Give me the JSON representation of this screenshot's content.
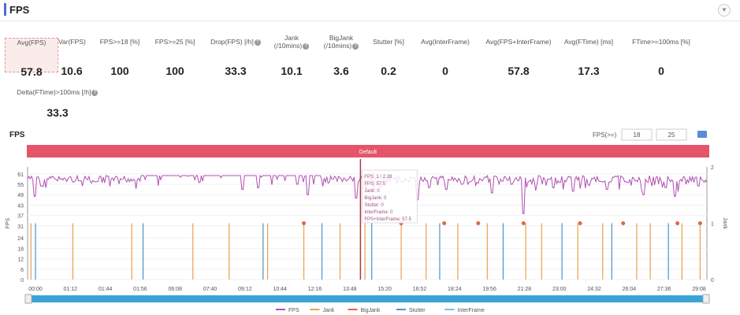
{
  "header": {
    "title": "FPS",
    "collapse_icon": "chevron-down-icon"
  },
  "metrics": [
    {
      "label": "Avg(FPS)",
      "value": "57.8",
      "selected": true
    },
    {
      "label": "Var(FPS)",
      "value": "10.6"
    },
    {
      "label": "FPS>=18 [%]",
      "value": "100"
    },
    {
      "label": "FPS>=25 [%]",
      "value": "100"
    },
    {
      "label": "Drop(FPS) [/h]",
      "value": "33.3",
      "help": true
    },
    {
      "label": "Jank\n(/10mins)",
      "value": "10.1",
      "help": true
    },
    {
      "label": "BigJank\n(/10mins)",
      "value": "3.6",
      "help": true
    },
    {
      "label": "Stutter [%]",
      "value": "0.2"
    },
    {
      "label": "Avg(InterFrame)",
      "value": "0"
    },
    {
      "label": "Avg(FPS+InterFrame)",
      "value": "57.8"
    },
    {
      "label": "Avg(FTime) [ms]",
      "value": "17.3"
    },
    {
      "label": "FTime>=100ms [%]",
      "value": "0"
    },
    {
      "label": "Delta(FTime)>100ms [/h]",
      "value": "33.3",
      "help": true
    }
  ],
  "chart_header": {
    "title": "FPS",
    "threshold_label": "FPS(>=)",
    "threshold_1": "18",
    "threshold_2": "25",
    "settings_icon": "chart-settings-icon",
    "band_label": "Default"
  },
  "chart_data": {
    "type": "line",
    "ylabel": "FPS",
    "y2label": "Jank",
    "ylim": [
      0,
      65
    ],
    "y2lim": [
      0,
      2
    ],
    "yticks": [
      0,
      6,
      12,
      18,
      24,
      31,
      37,
      43,
      49,
      55,
      61
    ],
    "y2ticks": [
      0,
      1,
      2
    ],
    "xlabels": [
      "00:00",
      "01:12",
      "01:44",
      "01:56",
      "06:08",
      "07:40",
      "09:12",
      "10:44",
      "12:16",
      "13:48",
      "15:20",
      "16:52",
      "18:24",
      "19:56",
      "21:28",
      "23:00",
      "24:32",
      "26:04",
      "27:36",
      "29:08"
    ],
    "x_minutes": [
      0,
      30
    ],
    "fps_baseline": 60,
    "fps_dips": [
      [
        0.3,
        48
      ],
      [
        0.6,
        54
      ],
      [
        2.3,
        57
      ],
      [
        7.6,
        56
      ],
      [
        9.5,
        52
      ],
      [
        10.2,
        53
      ],
      [
        11.9,
        55
      ],
      [
        12.4,
        49
      ],
      [
        13.3,
        56
      ],
      [
        14.5,
        47
      ],
      [
        15.6,
        53
      ],
      [
        17.2,
        46
      ],
      [
        18.5,
        52
      ],
      [
        19.2,
        55
      ],
      [
        20.5,
        50
      ],
      [
        21.4,
        55
      ],
      [
        21.9,
        38
      ],
      [
        23.2,
        53
      ],
      [
        24.1,
        51
      ],
      [
        24.8,
        55
      ],
      [
        25.6,
        52
      ],
      [
        26.5,
        56
      ],
      [
        27.2,
        49
      ],
      [
        28.2,
        53
      ],
      [
        28.6,
        48
      ],
      [
        29.6,
        54
      ]
    ],
    "jank_minutes": [
      0.15,
      0.35,
      2.0,
      4.6,
      5.1,
      7.3,
      8.9,
      10.4,
      10.6,
      12.2,
      13.0,
      13.8,
      14.9,
      15.2,
      16.5,
      17.6,
      18.2,
      19.0,
      20.3,
      21.0,
      22.0,
      22.7,
      23.6,
      24.3,
      25.4,
      25.8,
      26.9,
      27.5,
      28.3,
      28.9,
      29.7
    ],
    "bigjank_minutes": [
      12.2,
      16.5,
      18.4,
      19.9,
      21.9,
      24.4,
      26.3,
      28.7,
      29.7
    ],
    "cursor_minute": 14.7,
    "tooltip": [
      "FPS: 1 / 2.28",
      "FPS: 57.5",
      "Jank: 0",
      "BigJank: 0",
      "Stutter: 0",
      "InterFrame: 0",
      "FPS+InterFrame: 57.5"
    ],
    "legend": [
      {
        "name": "FPS",
        "color": "#b04fb0"
      },
      {
        "name": "Jank",
        "color": "#e7a24a"
      },
      {
        "name": "BigJank",
        "color": "#e0664a"
      },
      {
        "name": "Stutter",
        "color": "#4e92c8"
      },
      {
        "name": "InterFrame",
        "color": "#6dc3e6"
      }
    ]
  }
}
